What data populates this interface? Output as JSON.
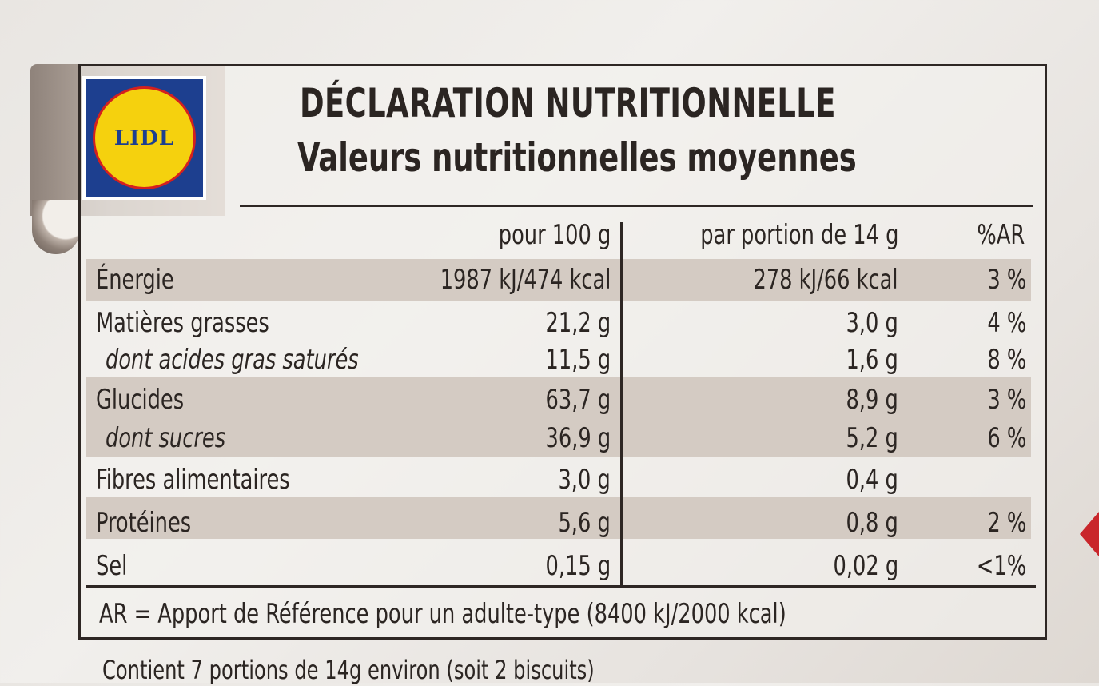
{
  "brand": {
    "logo_text": "LIDL"
  },
  "header": {
    "title": "DÉCLARATION NUTRITIONNELLE",
    "subtitle": "Valeurs nutritionnelles moyennes"
  },
  "table": {
    "columns": [
      "pour 100 g",
      "par portion de 14 g",
      "%AR"
    ],
    "rows": [
      {
        "label": "Énergie",
        "per100": "1987 kJ/474 kcal",
        "portion": "278 kJ/66 kcal",
        "ar": "3 %",
        "italic": false
      },
      {
        "label": "Matières grasses",
        "per100": "21,2 g",
        "portion": "3,0 g",
        "ar": "4 %",
        "italic": false
      },
      {
        "label": "dont acides gras saturés",
        "per100": "11,5 g",
        "portion": "1,6 g",
        "ar": "8 %",
        "italic": true
      },
      {
        "label": "Glucides",
        "per100": "63,7 g",
        "portion": "8,9 g",
        "ar": "3 %",
        "italic": false
      },
      {
        "label": "dont sucres",
        "per100": "36,9 g",
        "portion": "5,2 g",
        "ar": "6 %",
        "italic": true
      },
      {
        "label": "Fibres alimentaires",
        "per100": "3,0 g",
        "portion": "0,4 g",
        "ar": "",
        "italic": false
      },
      {
        "label": "Protéines",
        "per100": "5,6 g",
        "portion": "0,8 g",
        "ar": "2 %",
        "italic": false
      },
      {
        "label": "Sel",
        "per100": "0,15 g",
        "portion": "0,02 g",
        "ar": "<1%",
        "italic": false
      }
    ]
  },
  "footnote": "AR = Apport de Référence pour un adulte-type (8400 kJ/2000 kcal)",
  "bottom_note": "Contient 7 portions de 14g environ (soit 2 biscuits)"
}
